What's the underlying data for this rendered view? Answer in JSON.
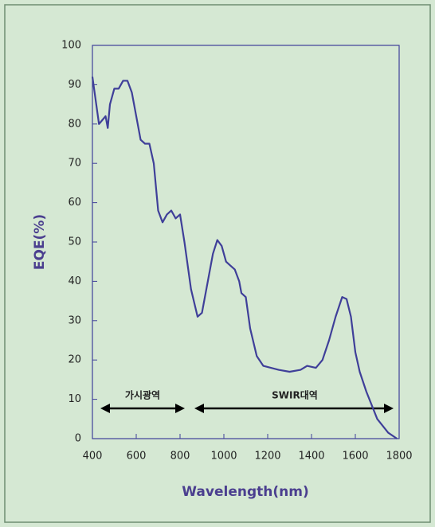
{
  "chart_data": {
    "type": "line",
    "x": [
      400,
      410,
      430,
      445,
      460,
      470,
      480,
      500,
      520,
      540,
      560,
      580,
      600,
      620,
      640,
      660,
      680,
      700,
      720,
      740,
      760,
      780,
      800,
      820,
      850,
      880,
      900,
      920,
      950,
      970,
      990,
      1010,
      1030,
      1050,
      1070,
      1080,
      1100,
      1120,
      1150,
      1180,
      1250,
      1300,
      1350,
      1380,
      1420,
      1450,
      1480,
      1510,
      1540,
      1560,
      1580,
      1600,
      1620,
      1650,
      1700,
      1750,
      1790
    ],
    "series": [
      {
        "color": "#3f3f99",
        "values": [
          92,
          88,
          80,
          81,
          82,
          79,
          85,
          89,
          89,
          91,
          91,
          88,
          82,
          76,
          75,
          75,
          70,
          58,
          55,
          57,
          58,
          56,
          57,
          50,
          38,
          31,
          32,
          38,
          47,
          50.5,
          49,
          45,
          44,
          43,
          40,
          37,
          36,
          28,
          21,
          18.5,
          17.5,
          17,
          17.5,
          18.5,
          18,
          20,
          25,
          31,
          36,
          35.5,
          31,
          22,
          17,
          12,
          5,
          1.5,
          0
        ]
      }
    ],
    "xlim": [
      400,
      1800
    ],
    "ylim": [
      0,
      100
    ],
    "xticks": [
      400,
      600,
      800,
      1000,
      1200,
      1400,
      1600,
      1800
    ],
    "yticks": [
      0,
      10,
      20,
      30,
      40,
      50,
      60,
      70,
      80,
      90,
      100
    ],
    "xlabel": "Wavelength(nm)",
    "ylabel": "EQE(%)",
    "annotations": [
      "가시광역",
      "SWIR대역"
    ]
  }
}
